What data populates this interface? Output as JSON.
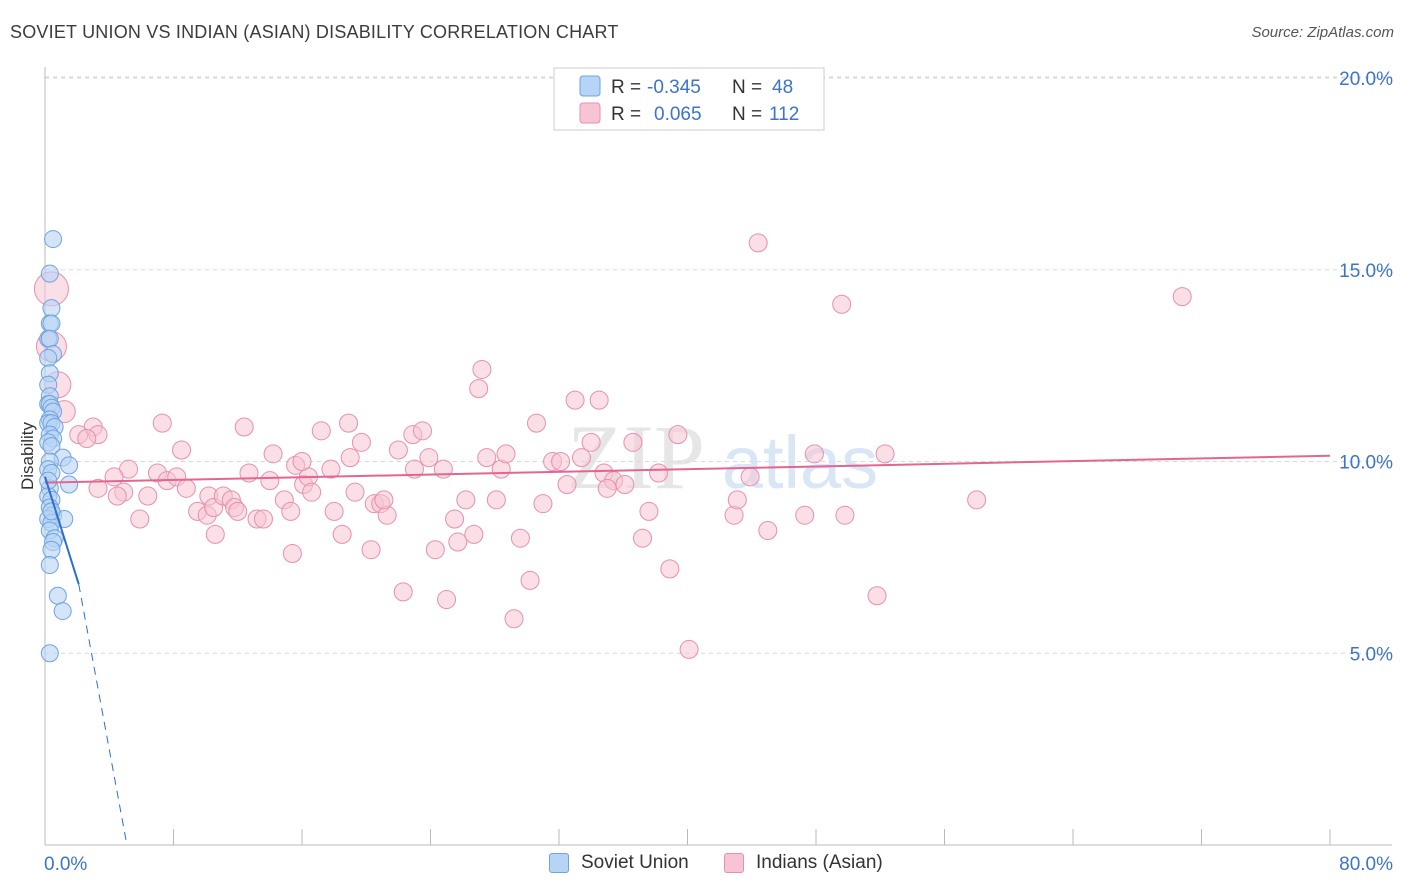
{
  "header": {
    "title": "SOVIET UNION VS INDIAN (ASIAN) DISABILITY CORRELATION CHART",
    "source": "Source: ZipAtlas.com"
  },
  "watermark": {
    "text_zip": "ZIP",
    "text_atlas": "atlas"
  },
  "legend_top": {
    "rows": [
      {
        "r_label": "R = ",
        "r_value": "-0.345",
        "n_label": "N = ",
        "n_value": "48"
      },
      {
        "r_label": "R = ",
        "r_value": "0.065",
        "n_label": "N = ",
        "n_value": "112"
      }
    ]
  },
  "legend_bottom": {
    "items": [
      "Soviet Union",
      "Indians (Asian)"
    ]
  },
  "colors": {
    "blue_fill": "#b7d3f5",
    "blue_stroke": "#6fa3e0",
    "blue_line": "#2d6fce",
    "pink_fill": "#f6c4d4",
    "pink_stroke": "#e98fae",
    "pink_line": "#e26691",
    "axis_text": "#3d74c9",
    "grid": "#d9d9d9"
  },
  "chart_data": {
    "type": "scatter",
    "title": "SOVIET UNION VS INDIAN (ASIAN) DISABILITY CORRELATION CHART",
    "xlabel": "",
    "ylabel": "Disability",
    "xlim": [
      0,
      80
    ],
    "ylim": [
      0,
      20
    ],
    "x_tick_labels": [
      "0.0%",
      "80.0%"
    ],
    "y_tick_labels": [
      "5.0%",
      "10.0%",
      "15.0%",
      "20.0%"
    ],
    "y_ticks": [
      5,
      10,
      15,
      20
    ],
    "grid": "horizontal dashed",
    "legend_placement": "top-center and bottom",
    "series": [
      {
        "name": "Soviet Union",
        "r": -0.345,
        "n": 48,
        "trend": {
          "x0": 0.0,
          "y0": 9.6,
          "x1": 2.1,
          "y1": 6.8,
          "dash_to_x": 5.1,
          "dash_to_y": 0.0
        },
        "points": [
          [
            0.5,
            15.8
          ],
          [
            0.3,
            14.9
          ],
          [
            0.4,
            14.0
          ],
          [
            0.3,
            13.6
          ],
          [
            0.4,
            13.6
          ],
          [
            0.2,
            13.2
          ],
          [
            0.3,
            13.2
          ],
          [
            0.5,
            12.8
          ],
          [
            0.2,
            12.7
          ],
          [
            0.3,
            12.3
          ],
          [
            0.2,
            12.0
          ],
          [
            0.3,
            11.7
          ],
          [
            0.2,
            11.5
          ],
          [
            0.3,
            11.5
          ],
          [
            0.4,
            11.4
          ],
          [
            0.5,
            11.3
          ],
          [
            0.3,
            11.1
          ],
          [
            0.2,
            11.0
          ],
          [
            0.4,
            11.0
          ],
          [
            0.6,
            10.9
          ],
          [
            0.3,
            10.7
          ],
          [
            0.5,
            10.6
          ],
          [
            0.2,
            10.5
          ],
          [
            0.4,
            10.4
          ],
          [
            1.1,
            10.1
          ],
          [
            0.3,
            10.0
          ],
          [
            1.5,
            9.9
          ],
          [
            0.2,
            9.8
          ],
          [
            0.4,
            9.7
          ],
          [
            1.5,
            9.4
          ],
          [
            0.3,
            9.3
          ],
          [
            0.2,
            9.1
          ],
          [
            0.4,
            9.0
          ],
          [
            0.3,
            8.8
          ],
          [
            0.5,
            8.6
          ],
          [
            0.2,
            8.5
          ],
          [
            1.2,
            8.5
          ],
          [
            0.4,
            8.4
          ],
          [
            0.3,
            8.2
          ],
          [
            0.6,
            8.0
          ],
          [
            0.5,
            7.9
          ],
          [
            0.4,
            7.7
          ],
          [
            0.3,
            7.3
          ],
          [
            0.8,
            6.5
          ],
          [
            1.1,
            6.1
          ],
          [
            0.3,
            5.0
          ],
          [
            0.4,
            8.7
          ],
          [
            0.2,
            9.5
          ]
        ]
      },
      {
        "name": "Indians (Asian)",
        "r": 0.065,
        "n": 112,
        "trend": {
          "x0": 0.0,
          "y0": 9.45,
          "x1": 80.0,
          "y1": 10.15
        },
        "points": [
          [
            0.4,
            14.5
          ],
          [
            0.4,
            13.0
          ],
          [
            0.8,
            12.0
          ],
          [
            1.2,
            11.3
          ],
          [
            3.0,
            10.9
          ],
          [
            2.1,
            10.7
          ],
          [
            3.3,
            10.7
          ],
          [
            2.6,
            10.6
          ],
          [
            5.2,
            9.8
          ],
          [
            3.3,
            9.3
          ],
          [
            4.3,
            9.6
          ],
          [
            4.9,
            9.2
          ],
          [
            4.5,
            9.1
          ],
          [
            6.4,
            9.1
          ],
          [
            5.9,
            8.5
          ],
          [
            7.0,
            9.7
          ],
          [
            7.3,
            11.0
          ],
          [
            7.6,
            9.5
          ],
          [
            8.2,
            9.6
          ],
          [
            8.5,
            10.3
          ],
          [
            8.8,
            9.3
          ],
          [
            9.5,
            8.7
          ],
          [
            10.1,
            8.6
          ],
          [
            10.2,
            9.1
          ],
          [
            10.6,
            8.1
          ],
          [
            10.5,
            8.8
          ],
          [
            11.1,
            9.1
          ],
          [
            11.6,
            9.0
          ],
          [
            11.8,
            8.8
          ],
          [
            12.0,
            8.7
          ],
          [
            12.4,
            10.9
          ],
          [
            12.7,
            9.7
          ],
          [
            13.2,
            8.5
          ],
          [
            13.6,
            8.5
          ],
          [
            14.0,
            9.5
          ],
          [
            14.2,
            10.2
          ],
          [
            14.9,
            9.0
          ],
          [
            15.3,
            8.7
          ],
          [
            15.4,
            7.6
          ],
          [
            15.6,
            9.9
          ],
          [
            16.1,
            9.4
          ],
          [
            16.4,
            9.6
          ],
          [
            16.6,
            9.2
          ],
          [
            17.2,
            10.8
          ],
          [
            17.8,
            9.8
          ],
          [
            18.0,
            8.7
          ],
          [
            18.5,
            8.1
          ],
          [
            18.9,
            11.0
          ],
          [
            19.0,
            10.1
          ],
          [
            19.3,
            9.2
          ],
          [
            19.7,
            10.5
          ],
          [
            20.3,
            7.7
          ],
          [
            20.5,
            8.9
          ],
          [
            20.9,
            8.9
          ],
          [
            21.3,
            8.6
          ],
          [
            21.1,
            9.0
          ],
          [
            22.0,
            10.3
          ],
          [
            22.3,
            6.6
          ],
          [
            22.9,
            10.7
          ],
          [
            23.0,
            9.8
          ],
          [
            23.5,
            10.8
          ],
          [
            23.9,
            10.1
          ],
          [
            24.3,
            7.7
          ],
          [
            24.8,
            9.8
          ],
          [
            25.0,
            6.4
          ],
          [
            25.5,
            8.5
          ],
          [
            25.7,
            7.9
          ],
          [
            26.2,
            9.0
          ],
          [
            26.7,
            8.1
          ],
          [
            27.0,
            11.9
          ],
          [
            27.2,
            12.4
          ],
          [
            27.5,
            10.1
          ],
          [
            28.1,
            9.0
          ],
          [
            28.4,
            9.8
          ],
          [
            28.7,
            10.2
          ],
          [
            29.2,
            5.9
          ],
          [
            29.6,
            8.0
          ],
          [
            30.2,
            6.9
          ],
          [
            30.6,
            11.0
          ],
          [
            31.0,
            8.9
          ],
          [
            31.6,
            10.0
          ],
          [
            32.1,
            10.0
          ],
          [
            32.5,
            9.4
          ],
          [
            33.0,
            11.6
          ],
          [
            33.4,
            10.1
          ],
          [
            34.0,
            10.5
          ],
          [
            34.5,
            11.6
          ],
          [
            34.8,
            9.7
          ],
          [
            35.4,
            9.5
          ],
          [
            36.1,
            9.4
          ],
          [
            36.6,
            10.5
          ],
          [
            37.2,
            8.0
          ],
          [
            37.6,
            8.7
          ],
          [
            38.2,
            9.7
          ],
          [
            38.9,
            7.2
          ],
          [
            39.4,
            10.7
          ],
          [
            40.1,
            5.1
          ],
          [
            42.9,
            8.6
          ],
          [
            43.1,
            9.0
          ],
          [
            43.9,
            9.6
          ],
          [
            44.4,
            15.7
          ],
          [
            45.0,
            8.2
          ],
          [
            47.3,
            8.6
          ],
          [
            47.9,
            10.2
          ],
          [
            49.8,
            8.6
          ],
          [
            49.6,
            14.1
          ],
          [
            51.8,
            6.5
          ],
          [
            52.3,
            10.2
          ],
          [
            58.0,
            9.0
          ],
          [
            70.8,
            14.3
          ],
          [
            35.0,
            9.3
          ],
          [
            16.0,
            10.0
          ]
        ]
      }
    ]
  }
}
